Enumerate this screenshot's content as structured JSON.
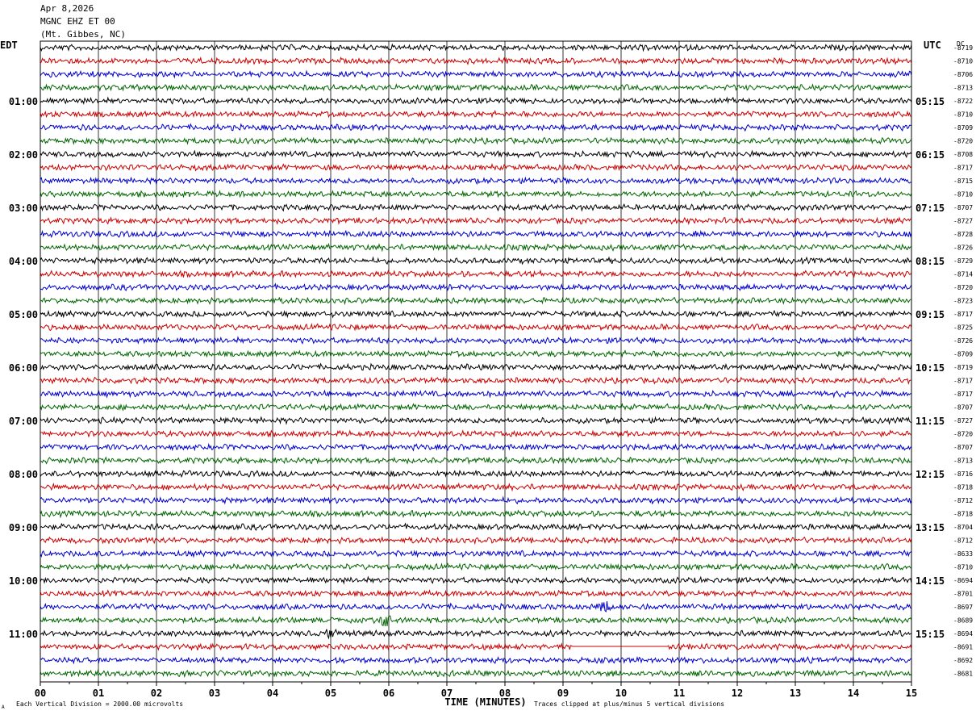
{
  "header": {
    "date": "Apr 8,2026",
    "station": "MGNC EHZ ET 00",
    "location": "(Mt. Gibbes, NC)"
  },
  "chart_data": {
    "type": "line",
    "description_left_tz": "EDT",
    "description_right_tz": "UTC",
    "dc_header": "DC",
    "xlabel": "TIME (MINUTES)",
    "xlim": [
      0,
      15
    ],
    "x_ticks": [
      "00",
      "01",
      "02",
      "03",
      "04",
      "05",
      "06",
      "07",
      "08",
      "09",
      "10",
      "11",
      "12",
      "13",
      "14",
      "15"
    ],
    "trace_colors": [
      "#000000",
      "#cc0000",
      "#0000cc",
      "#006600"
    ],
    "left_hour_labels": [
      {
        "row": 4,
        "label": "01:00"
      },
      {
        "row": 8,
        "label": "02:00"
      },
      {
        "row": 12,
        "label": "03:00"
      },
      {
        "row": 16,
        "label": "04:00"
      },
      {
        "row": 20,
        "label": "05:00"
      },
      {
        "row": 24,
        "label": "06:00"
      },
      {
        "row": 28,
        "label": "07:00"
      },
      {
        "row": 32,
        "label": "08:00"
      },
      {
        "row": 36,
        "label": "09:00"
      },
      {
        "row": 40,
        "label": "10:00"
      },
      {
        "row": 44,
        "label": "11:00"
      }
    ],
    "right_hour_labels": [
      {
        "row": 4,
        "label": "05:15"
      },
      {
        "row": 8,
        "label": "06:15"
      },
      {
        "row": 12,
        "label": "07:15"
      },
      {
        "row": 16,
        "label": "08:15"
      },
      {
        "row": 20,
        "label": "09:15"
      },
      {
        "row": 24,
        "label": "10:15"
      },
      {
        "row": 28,
        "label": "11:15"
      },
      {
        "row": 32,
        "label": "12:15"
      },
      {
        "row": 36,
        "label": "13:15"
      },
      {
        "row": 40,
        "label": "14:15"
      },
      {
        "row": 44,
        "label": "15:15"
      }
    ],
    "dc_offsets": [
      "-8719",
      "-8710",
      "-8706",
      "-8713",
      "-8722",
      "-8710",
      "-8709",
      "-8720",
      "-8708",
      "-8717",
      "-8715",
      "-8710",
      "-8707",
      "-8727",
      "-8728",
      "-8726",
      "-8729",
      "-8714",
      "-8720",
      "-8723",
      "-8717",
      "-8725",
      "-8726",
      "-8709",
      "-8719",
      "-8717",
      "-8717",
      "-8707",
      "-8727",
      "-8720",
      "-8707",
      "-8713",
      "-8716",
      "-8718",
      "-8712",
      "-8718",
      "-8704",
      "-8712",
      "-8633",
      "-8710",
      "-8694",
      "-8701",
      "-8697",
      "-8689",
      "-8694",
      "-8691",
      "-8692",
      "-8681"
    ],
    "events": [
      {
        "row": 43,
        "minute": 5.95,
        "note": "burst"
      },
      {
        "row": 44,
        "minute": 5.0,
        "note": "burst"
      },
      {
        "row": 42,
        "minute": 9.7,
        "note": "burst"
      }
    ],
    "flatline": {
      "row": 45,
      "start_minute": 9.15,
      "end_minute": 10.8
    }
  },
  "footer": {
    "scale_note": "Each Vertical Division = 2000.00 microvolts",
    "clip_note": "Traces clipped at plus/minus 5 vertical divisions",
    "corner_mark": "A"
  }
}
